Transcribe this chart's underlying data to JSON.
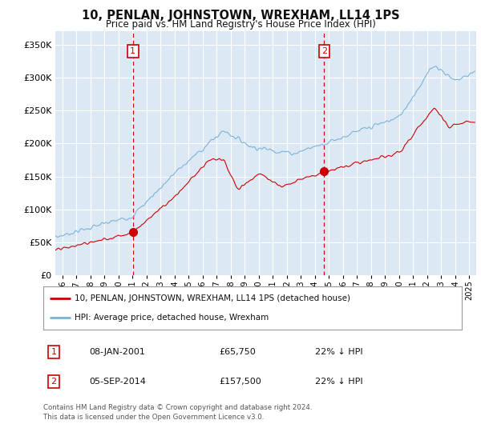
{
  "title": "10, PENLAN, JOHNSTOWN, WREXHAM, LL14 1PS",
  "subtitle": "Price paid vs. HM Land Registry's House Price Index (HPI)",
  "ylim": [
    0,
    370000
  ],
  "xlim_start": 1995.5,
  "xlim_end": 2025.5,
  "bg_color": "#dce9f5",
  "grid_color": "#ffffff",
  "hpi_color": "#7ab3d8",
  "price_color": "#cc0000",
  "sale1_x": 2001.03,
  "sale1_y": 65750,
  "sale2_x": 2014.67,
  "sale2_y": 157500,
  "legend1": "10, PENLAN, JOHNSTOWN, WREXHAM, LL14 1PS (detached house)",
  "legend2": "HPI: Average price, detached house, Wrexham",
  "ann1_label": "1",
  "ann1_date": "08-JAN-2001",
  "ann1_price": "£65,750",
  "ann1_hpi": "22% ↓ HPI",
  "ann2_label": "2",
  "ann2_date": "05-SEP-2014",
  "ann2_price": "£157,500",
  "ann2_hpi": "22% ↓ HPI",
  "footer": "Contains HM Land Registry data © Crown copyright and database right 2024.\nThis data is licensed under the Open Government Licence v3.0."
}
